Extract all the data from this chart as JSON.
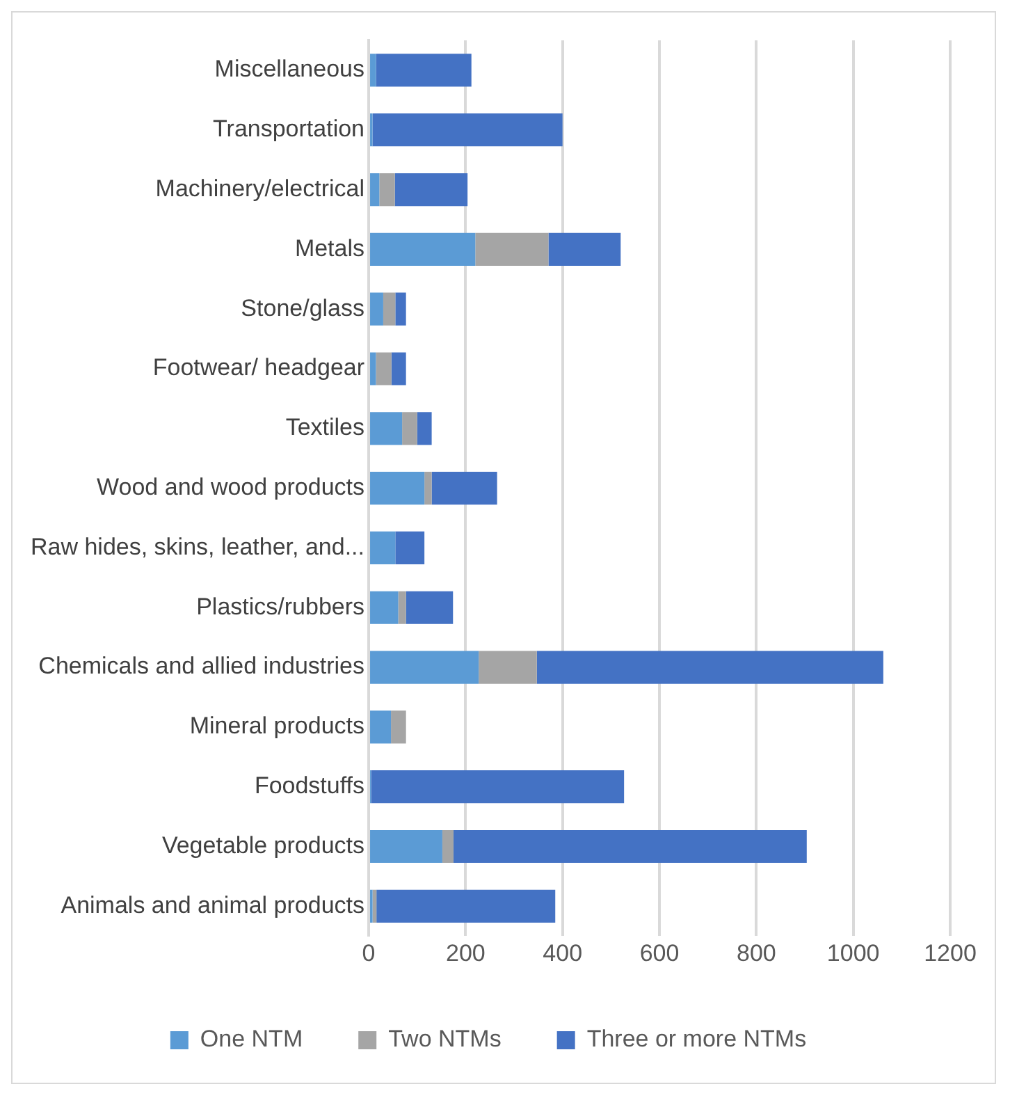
{
  "chart_data": {
    "type": "bar",
    "orientation": "horizontal",
    "stacked": true,
    "categories": [
      "Miscellaneous",
      "Transportation",
      "Machinery/electrical",
      "Metals",
      "Stone/glass",
      "Footwear/ headgear",
      "Textiles",
      "Wood and wood products",
      "Raw hides, skins, leather, and...",
      "Plastics/rubbers",
      "Chemicals and allied industries",
      "Mineral products",
      "Foodstuffs",
      "Vegetable products",
      "Animals and animal products"
    ],
    "series": [
      {
        "name": "One NTM",
        "color": "#5b9bd5",
        "values": [
          15,
          8,
          22,
          220,
          30,
          15,
          69,
          115,
          55,
          61,
          227,
          46,
          5,
          152,
          8
        ]
      },
      {
        "name": "Two NTMs",
        "color": "#a5a5a5",
        "values": [
          0,
          0,
          32,
          151,
          25,
          32,
          31,
          15,
          0,
          16,
          120,
          31,
          0,
          23,
          8
        ]
      },
      {
        "name": "Three or more NTMs",
        "color": "#4472c4",
        "values": [
          197,
          392,
          150,
          149,
          22,
          30,
          30,
          135,
          60,
          97,
          715,
          0,
          522,
          729,
          369
        ]
      }
    ],
    "xlim": [
      0,
      1200
    ],
    "xticks": [
      0,
      200,
      400,
      600,
      800,
      1000,
      1200
    ],
    "grid": "x",
    "legend": "bottom"
  }
}
